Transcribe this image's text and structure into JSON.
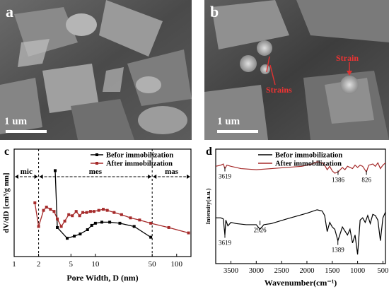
{
  "panels": {
    "a": {
      "letter": "a",
      "scale_label": "1 um"
    },
    "b": {
      "letter": "b",
      "scale_label": "1 um",
      "annotations": [
        "Strain",
        "Strains"
      ]
    }
  },
  "chart_data": [
    {
      "panel": "c",
      "type": "line",
      "xscale": "log",
      "xlabel": "Pore Width, D (nm)",
      "ylabel": "dV/dD [cm³/g nm]",
      "xlim": [
        1,
        150
      ],
      "xticks": [
        1,
        2,
        5,
        10,
        50,
        100
      ],
      "xtick_labels": [
        "1",
        "2",
        "5",
        "10",
        "50",
        "100"
      ],
      "ylim": [
        0,
        1
      ],
      "yticks_shown": false,
      "legend": "top-right",
      "regions": [
        {
          "label": "mic",
          "from": 1,
          "to": 2
        },
        {
          "label": "mes",
          "from": 2,
          "to": 50
        },
        {
          "label": "mas",
          "from": 50,
          "to": 150
        }
      ],
      "series": [
        {
          "name": "Befor immobilization",
          "color": "#000000",
          "marker": "square",
          "x": [
            3.2,
            3.4,
            4.5,
            5.5,
            6.5,
            8.0,
            9.0,
            10.0,
            12.0,
            15.0,
            20.0,
            30.0,
            48.0
          ],
          "y": [
            0.8,
            0.27,
            0.17,
            0.19,
            0.21,
            0.25,
            0.29,
            0.31,
            0.32,
            0.32,
            0.31,
            0.28,
            0.18
          ]
        },
        {
          "name": "After immobilization",
          "color": "#a52a2a",
          "marker": "square",
          "x": [
            1.8,
            2.0,
            2.3,
            2.5,
            2.8,
            3.1,
            3.4,
            3.8,
            4.2,
            4.7,
            5.2,
            5.8,
            6.4,
            7.0,
            7.8,
            8.7,
            9.6,
            11.0,
            12.5,
            14.0,
            17.0,
            21.0,
            27.0,
            35.0,
            48.0,
            80.0,
            140.0
          ],
          "y": [
            0.5,
            0.28,
            0.43,
            0.46,
            0.44,
            0.42,
            0.35,
            0.28,
            0.33,
            0.39,
            0.38,
            0.42,
            0.38,
            0.41,
            0.41,
            0.42,
            0.42,
            0.43,
            0.44,
            0.43,
            0.41,
            0.39,
            0.36,
            0.34,
            0.31,
            0.27,
            0.22
          ]
        }
      ]
    },
    {
      "panel": "d",
      "type": "line",
      "xlabel": "Wavenumber(cm⁻¹)",
      "ylabel": "Intensity(a.u.)",
      "xlim": [
        3800,
        450
      ],
      "xticks": [
        3500,
        3000,
        2500,
        2000,
        1500,
        1000,
        500
      ],
      "legend": "top",
      "series": [
        {
          "name": "Befor immobilization",
          "color": "#000000",
          "x": [
            3800,
            3700,
            3650,
            3619,
            3600,
            3560,
            3500,
            3400,
            3200,
            3000,
            2926,
            2850,
            2700,
            2400,
            2000,
            1800,
            1700,
            1650,
            1600,
            1550,
            1500,
            1450,
            1389,
            1300,
            1200,
            1150,
            1100,
            1050,
            1000,
            950,
            900,
            850,
            800,
            750,
            700,
            650,
            600,
            550,
            500,
            450
          ],
          "y": [
            0.4,
            0.4,
            0.39,
            0.25,
            0.38,
            0.33,
            0.36,
            0.35,
            0.34,
            0.34,
            0.3,
            0.34,
            0.35,
            0.39,
            0.44,
            0.47,
            0.46,
            0.42,
            0.28,
            0.36,
            0.32,
            0.3,
            0.2,
            0.32,
            0.25,
            0.3,
            0.18,
            0.25,
            0.08,
            0.38,
            0.4,
            0.36,
            0.42,
            0.35,
            0.43,
            0.42,
            0.38,
            0.2,
            0.4,
            0.45
          ]
        },
        {
          "name": "After immobilization",
          "color": "#a52a2a",
          "x": [
            3800,
            3700,
            3650,
            3619,
            3580,
            3500,
            3300,
            3000,
            2700,
            2400,
            2100,
            1900,
            1800,
            1700,
            1650,
            1600,
            1550,
            1500,
            1450,
            1386,
            1300,
            1250,
            1200,
            1100,
            1050,
            1000,
            950,
            900,
            826,
            780,
            700,
            650,
            600,
            550,
            500,
            450
          ],
          "y": [
            0.85,
            0.86,
            0.87,
            0.83,
            0.86,
            0.85,
            0.83,
            0.82,
            0.83,
            0.84,
            0.85,
            0.87,
            0.89,
            0.88,
            0.86,
            0.82,
            0.85,
            0.81,
            0.79,
            0.8,
            0.84,
            0.82,
            0.85,
            0.83,
            0.86,
            0.84,
            0.86,
            0.85,
            0.8,
            0.86,
            0.87,
            0.85,
            0.88,
            0.83,
            0.86,
            0.88
          ]
        }
      ],
      "annotations_before": [
        "3619",
        "2926",
        "1389"
      ],
      "annotations_after": [
        "3619",
        "1386",
        "826"
      ]
    }
  ]
}
